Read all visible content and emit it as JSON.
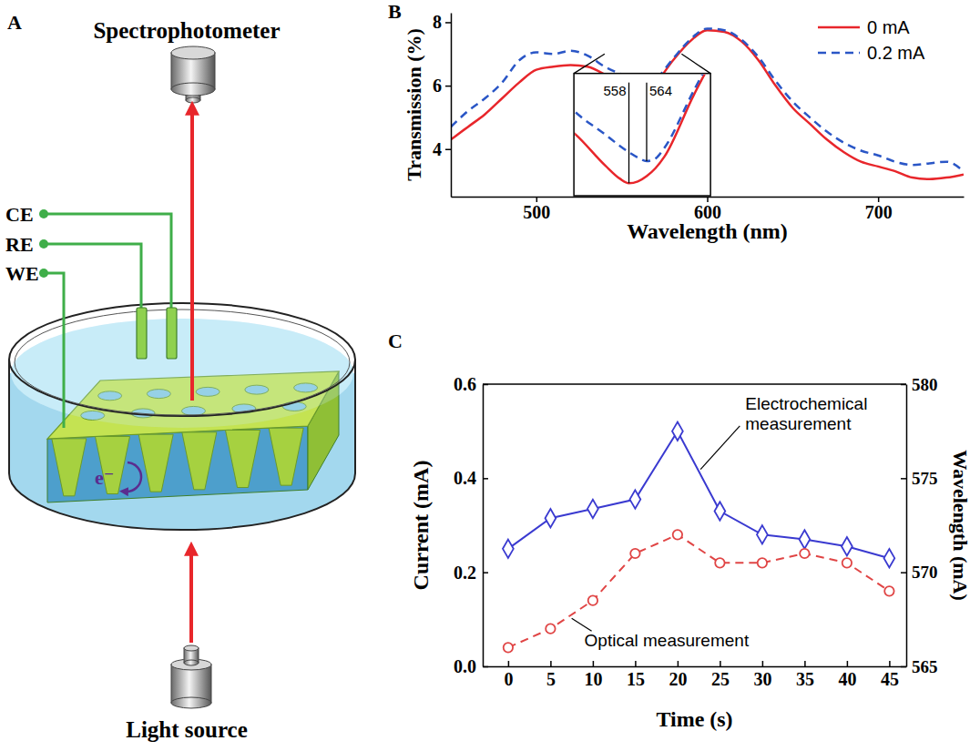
{
  "diagram": {
    "panel": "A",
    "detector": "Spectrophotometer",
    "source": "Light source",
    "electrodes": [
      "CE",
      "RE",
      "WE"
    ],
    "carrier": "e⁻"
  },
  "chart_data": [
    {
      "type": "line",
      "panel": "B",
      "xlabel": "Wavelength (nm)",
      "ylabel": "Transmission (%)",
      "xlim": [
        450,
        750
      ],
      "xticks": [
        500,
        600,
        700
      ],
      "ylim": [
        2.5,
        8.3
      ],
      "yticks": [
        4,
        6,
        8
      ],
      "legend": "upper right",
      "x": [
        450,
        460,
        470,
        480,
        490,
        500,
        510,
        520,
        530,
        540,
        550,
        555,
        558,
        561,
        564,
        567,
        570,
        580,
        590,
        600,
        610,
        620,
        630,
        640,
        650,
        660,
        670,
        680,
        690,
        700,
        710,
        720,
        730,
        740,
        750
      ],
      "series": [
        {
          "name": "0 mA",
          "color": "#e8262b",
          "line_style": "solid",
          "values": [
            4.3,
            4.7,
            5.1,
            5.6,
            6.1,
            6.5,
            6.6,
            6.65,
            6.6,
            6.35,
            6.0,
            5.85,
            5.8,
            5.82,
            5.88,
            5.97,
            6.1,
            6.8,
            7.4,
            7.75,
            7.7,
            7.4,
            6.8,
            6.0,
            5.3,
            4.8,
            4.3,
            3.9,
            3.6,
            3.45,
            3.3,
            3.1,
            3.05,
            3.1,
            3.2
          ]
        },
        {
          "name": "0.2 mA",
          "color": "#2a56c6",
          "line_style": "dashed",
          "values": [
            4.7,
            5.2,
            5.6,
            6.1,
            6.8,
            7.05,
            7.0,
            7.1,
            6.95,
            6.6,
            6.35,
            6.22,
            6.15,
            6.09,
            6.05,
            6.08,
            6.2,
            6.85,
            7.45,
            7.8,
            7.75,
            7.45,
            6.9,
            6.15,
            5.5,
            5.0,
            4.55,
            4.2,
            3.95,
            3.8,
            3.6,
            3.5,
            3.55,
            3.6,
            3.3
          ]
        }
      ],
      "inset": {
        "xlim": [
          540,
          585
        ],
        "ylim": [
          5.7,
          7.0
        ],
        "markers": [
          558,
          564
        ]
      }
    },
    {
      "type": "line",
      "panel": "C",
      "xlabel": "Time (s)",
      "ylabel": "Current (mA)",
      "y2label": "Wavelength (mA)",
      "xlim": [
        -3,
        47
      ],
      "xticks": [
        0,
        5,
        10,
        15,
        20,
        25,
        30,
        35,
        40,
        45
      ],
      "ylim": [
        0,
        0.6
      ],
      "yticks": [
        {
          "value": 0,
          "label": "0.0"
        },
        0.2,
        0.4,
        0.6
      ],
      "y2lim": [
        565,
        580
      ],
      "y2ticks": [
        565,
        570,
        575,
        580
      ],
      "x": [
        0,
        5,
        10,
        15,
        20,
        25,
        30,
        35,
        40,
        45
      ],
      "series": [
        {
          "name": "Electrochemical measurement",
          "color": "#3a3ad0",
          "marker": "diamond",
          "line_style": "solid",
          "values": [
            0.25,
            0.315,
            0.335,
            0.355,
            0.5,
            0.33,
            0.28,
            0.27,
            0.255,
            0.23
          ]
        },
        {
          "name": "Optical measurement",
          "color": "#e04545",
          "marker": "circle",
          "line_style": "dashed",
          "axis": "y2",
          "values": [
            566.0,
            567.0,
            568.5,
            571.0,
            572.0,
            570.5,
            570.5,
            571.0,
            570.5,
            569.0
          ]
        }
      ]
    }
  ]
}
